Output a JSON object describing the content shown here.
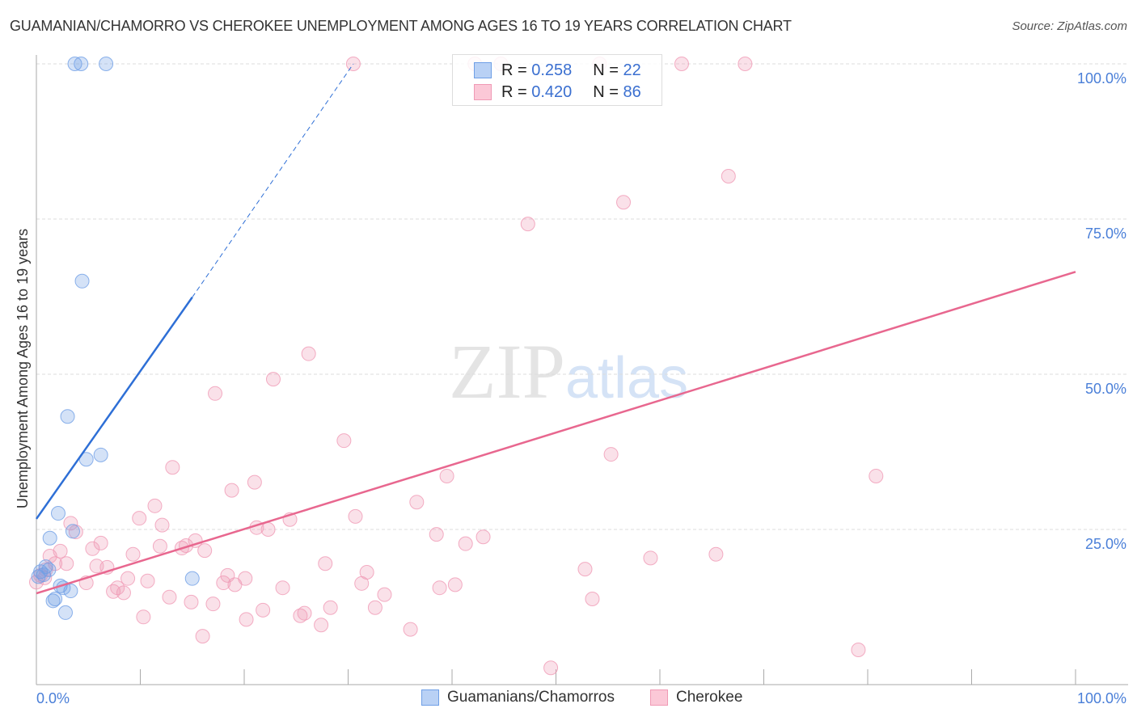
{
  "title": "GUAMANIAN/CHAMORRO VS CHEROKEE UNEMPLOYMENT AMONG AGES 16 TO 19 YEARS CORRELATION CHART",
  "source": "Source: ZipAtlas.com",
  "watermark": "ZIPatlas",
  "legend": {
    "rows": [
      {
        "r_label": "R =",
        "r": "0.258",
        "n_label": "N =",
        "n": "22"
      },
      {
        "r_label": "R =",
        "r": "0.420",
        "n_label": "N =",
        "n": "86"
      }
    ]
  },
  "chart_data": {
    "type": "scatter",
    "title": "GUAMANIAN/CHAMORRO VS CHEROKEE UNEMPLOYMENT AMONG AGES 16 TO 19 YEARS CORRELATION CHART",
    "xlabel": "",
    "ylabel": "Unemployment Among Ages 16 to 19 years",
    "xlim": [
      0,
      100
    ],
    "ylim": [
      0,
      100
    ],
    "x_tick_labels": [
      "0.0%",
      "100.0%"
    ],
    "y_tick_labels": [
      {
        "v": 100,
        "label": "100.0%"
      },
      {
        "v": 75,
        "label": "75.0%"
      },
      {
        "v": 50,
        "label": "50.0%"
      },
      {
        "v": 25,
        "label": "25.0%"
      }
    ],
    "grid": true,
    "legend_position": "top-center",
    "series": [
      {
        "name": "Guamanians/Chamorros",
        "color": "#6f9fe6",
        "line_color": "#2e6fd6",
        "R": 0.258,
        "N": 22,
        "trend": {
          "x0": 0,
          "y0": 26.7,
          "x1": 15.0,
          "y1": 62.4,
          "dash_to_x": 30.5,
          "dash_to_y": 100
        },
        "points": [
          [
            3.7,
            100
          ],
          [
            4.3,
            100
          ],
          [
            6.7,
            100
          ],
          [
            4.4,
            65.0
          ],
          [
            3.0,
            43.2
          ],
          [
            6.2,
            37.0
          ],
          [
            4.8,
            36.3
          ],
          [
            2.1,
            27.6
          ],
          [
            1.3,
            23.6
          ],
          [
            3.5,
            24.7
          ],
          [
            0.9,
            19.0
          ],
          [
            0.4,
            18.2
          ],
          [
            0.7,
            17.7
          ],
          [
            1.2,
            18.5
          ],
          [
            2.3,
            15.9
          ],
          [
            2.6,
            15.6
          ],
          [
            3.3,
            15.1
          ],
          [
            1.8,
            13.8
          ],
          [
            1.6,
            13.5
          ],
          [
            2.8,
            11.6
          ],
          [
            15.0,
            17.1
          ],
          [
            0.2,
            17.4
          ]
        ]
      },
      {
        "name": "Cherokee",
        "color": "#f09ab5",
        "line_color": "#e8678f",
        "R": 0.42,
        "N": 86,
        "trend": {
          "x0": 0,
          "y0": 14.7,
          "x1": 100,
          "y1": 66.5
        },
        "points": [
          [
            30.5,
            100
          ],
          [
            42.2,
            100
          ],
          [
            44.7,
            100
          ],
          [
            54.2,
            100
          ],
          [
            62.1,
            100
          ],
          [
            68.2,
            100
          ],
          [
            66.6,
            81.9
          ],
          [
            56.5,
            77.7
          ],
          [
            47.3,
            74.2
          ],
          [
            26.2,
            53.3
          ],
          [
            22.8,
            49.2
          ],
          [
            17.2,
            46.9
          ],
          [
            29.6,
            39.3
          ],
          [
            13.1,
            35.0
          ],
          [
            55.3,
            37.1
          ],
          [
            80.8,
            33.6
          ],
          [
            39.5,
            33.6
          ],
          [
            18.8,
            31.3
          ],
          [
            21.0,
            32.6
          ],
          [
            36.6,
            29.4
          ],
          [
            11.4,
            28.8
          ],
          [
            9.9,
            26.8
          ],
          [
            3.3,
            26.0
          ],
          [
            12.1,
            25.7
          ],
          [
            30.7,
            27.1
          ],
          [
            24.4,
            26.6
          ],
          [
            21.2,
            25.3
          ],
          [
            22.3,
            25.0
          ],
          [
            3.8,
            24.6
          ],
          [
            38.5,
            24.2
          ],
          [
            43.0,
            23.8
          ],
          [
            6.2,
            22.8
          ],
          [
            41.3,
            22.7
          ],
          [
            15.3,
            23.2
          ],
          [
            14.4,
            22.4
          ],
          [
            2.3,
            21.5
          ],
          [
            5.4,
            21.9
          ],
          [
            1.3,
            20.7
          ],
          [
            16.2,
            21.6
          ],
          [
            11.9,
            22.3
          ],
          [
            14.0,
            22.0
          ],
          [
            9.3,
            21.0
          ],
          [
            59.1,
            20.4
          ],
          [
            65.4,
            21.0
          ],
          [
            5.8,
            19.1
          ],
          [
            6.8,
            18.9
          ],
          [
            1.8,
            19.5
          ],
          [
            2.9,
            19.5
          ],
          [
            0.9,
            18.5
          ],
          [
            27.8,
            19.5
          ],
          [
            31.8,
            18.1
          ],
          [
            52.8,
            18.6
          ],
          [
            18.4,
            17.6
          ],
          [
            20.1,
            17.1
          ],
          [
            8.8,
            17.1
          ],
          [
            10.7,
            16.7
          ],
          [
            4.8,
            16.4
          ],
          [
            18.0,
            16.4
          ],
          [
            19.1,
            16.1
          ],
          [
            31.3,
            16.3
          ],
          [
            40.3,
            16.1
          ],
          [
            38.8,
            15.6
          ],
          [
            23.7,
            15.6
          ],
          [
            7.8,
            15.6
          ],
          [
            7.4,
            15.0
          ],
          [
            8.4,
            14.8
          ],
          [
            12.8,
            14.1
          ],
          [
            33.5,
            14.5
          ],
          [
            14.9,
            13.3
          ],
          [
            17.0,
            13.0
          ],
          [
            21.8,
            12.0
          ],
          [
            28.3,
            12.4
          ],
          [
            32.6,
            12.4
          ],
          [
            53.5,
            13.8
          ],
          [
            25.8,
            11.5
          ],
          [
            25.4,
            11.1
          ],
          [
            10.3,
            10.9
          ],
          [
            20.2,
            10.5
          ],
          [
            27.4,
            9.6
          ],
          [
            36.0,
            8.9
          ],
          [
            16.0,
            7.8
          ],
          [
            79.1,
            5.6
          ],
          [
            49.5,
            2.7
          ],
          [
            0.8,
            17.2
          ],
          [
            0.4,
            17.6
          ],
          [
            0.0,
            16.5
          ]
        ]
      }
    ]
  }
}
